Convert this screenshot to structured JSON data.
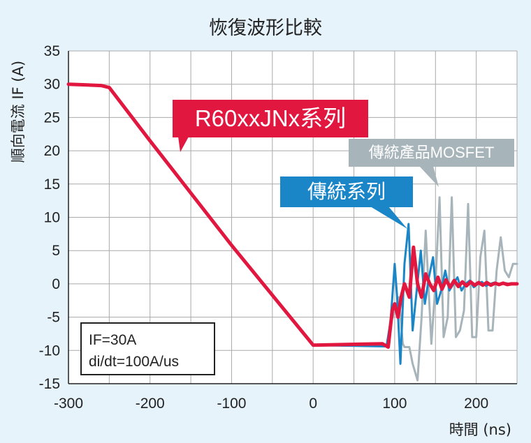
{
  "title": "恢復波形比較",
  "ylabel": "順向電流 IF (A)",
  "xlabel": "時間 (ns)",
  "conditions": {
    "line1": "IF=30A",
    "line2": "di/dt=100A/us"
  },
  "callouts": {
    "red": "R60xxJNx系列",
    "blue": "傳統系列",
    "gray": "傳統產品MOSFET"
  },
  "colors": {
    "red": "#e1173f",
    "blue": "#1a86c8",
    "gray": "#a7b5bb",
    "background": "#e6f3fb"
  },
  "chart_data": {
    "type": "line",
    "title": "恢復波形比較",
    "xlabel": "時間 (ns)",
    "ylabel": "順向電流 IF (A)",
    "xlim": [
      -300,
      250
    ],
    "ylim": [
      -15,
      35
    ],
    "xticks": [
      -300,
      -200,
      -100,
      0,
      100,
      200
    ],
    "yticks": [
      35,
      30,
      25,
      20,
      15,
      10,
      5,
      0,
      -5,
      -10,
      -15
    ],
    "grid": true,
    "series": [
      {
        "name": "傳統產品MOSFET",
        "color": "#a7b5bb",
        "x": [
          -300,
          -260,
          -250,
          -200,
          -100,
          0,
          90,
          95,
          100,
          105,
          110,
          112,
          118,
          122,
          128,
          133,
          138,
          145,
          150,
          155,
          160,
          165,
          170,
          175,
          180,
          185,
          190,
          195,
          200,
          205,
          210,
          215,
          220,
          225,
          230,
          235,
          240,
          245,
          250
        ],
        "y": [
          30,
          29.8,
          29.5,
          21.5,
          5.8,
          -9.2,
          -9.3,
          -6,
          -4,
          -2,
          -9,
          -9.5,
          -9.5,
          -12,
          -14.5,
          -5,
          8,
          -9,
          0,
          13,
          -8,
          -5,
          13,
          -8,
          -7,
          -4,
          12,
          -8,
          -8,
          4,
          8,
          -7,
          -7,
          2,
          7,
          2,
          1,
          3,
          3
        ]
      },
      {
        "name": "傳統系列",
        "color": "#1a86c8",
        "x": [
          -300,
          -260,
          -250,
          -200,
          -100,
          0,
          90,
          95,
          100,
          103,
          107,
          112,
          117,
          122,
          127,
          132,
          137,
          142,
          147,
          152,
          157,
          162,
          167,
          172,
          177,
          182,
          187,
          192,
          197,
          202,
          207,
          212,
          217,
          222,
          227,
          232,
          237,
          242,
          247,
          250
        ],
        "y": [
          30,
          29.8,
          29.5,
          21.5,
          5.8,
          -9.2,
          -9.4,
          -5.5,
          3,
          -2,
          -12,
          3,
          9,
          -7,
          -1,
          5,
          -3,
          1,
          4,
          -3,
          -1,
          2,
          -1,
          0,
          1,
          -1,
          0,
          0.5,
          -0.5,
          0,
          0.3,
          -0.3,
          0,
          0.2,
          -0.2,
          0,
          0.1,
          -0.1,
          0,
          0
        ]
      },
      {
        "name": "R60xxJNx系列",
        "color": "#e1173f",
        "x": [
          -300,
          -260,
          -250,
          -200,
          -100,
          0,
          85,
          92,
          97,
          100,
          104,
          108,
          112,
          118,
          123,
          128,
          133,
          138,
          143,
          148,
          153,
          158,
          163,
          168,
          173,
          178,
          183,
          188,
          193,
          198,
          203,
          208,
          213,
          218,
          223,
          228,
          233,
          238,
          243,
          248,
          250
        ],
        "y": [
          30,
          29.8,
          29.5,
          21.5,
          5.8,
          -9.2,
          -9,
          -9.5,
          -4,
          -3,
          -5,
          -2,
          0,
          -2,
          5.5,
          0,
          -2,
          1.5,
          0,
          -1,
          1,
          -0.8,
          0.6,
          -0.5,
          0.5,
          -0.4,
          0.3,
          -0.3,
          0.3,
          -0.2,
          0.2,
          -0.2,
          0.2,
          -0.2,
          0.1,
          -0.1,
          0.1,
          -0.1,
          0,
          0,
          0
        ]
      }
    ]
  }
}
